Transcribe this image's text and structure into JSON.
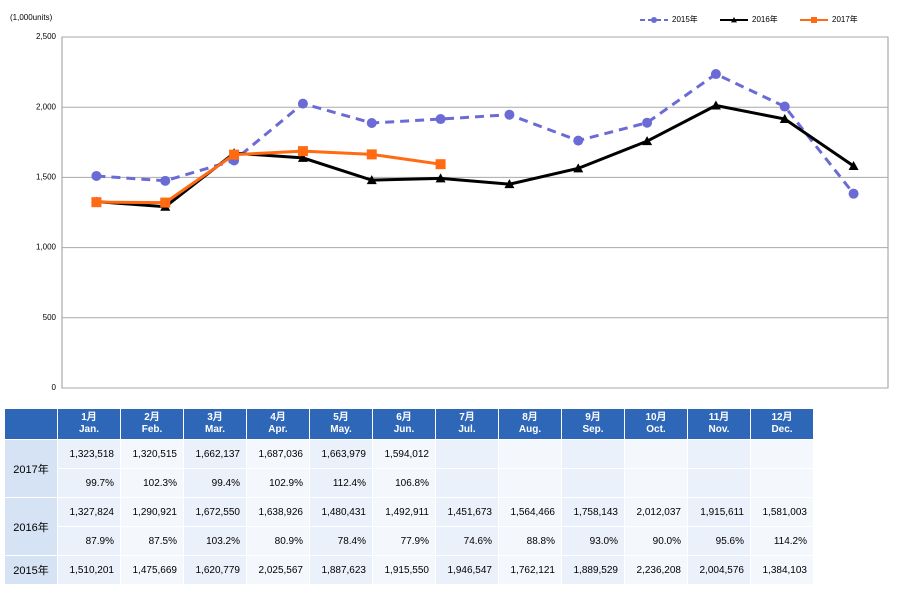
{
  "chart_data": {
    "type": "line",
    "y_axis_label": "(1,000units)",
    "categories": [
      "1月",
      "2月",
      "3月",
      "4月",
      "5月",
      "6月",
      "7月",
      "8月",
      "9月",
      "10月",
      "11月",
      "12月"
    ],
    "categories_en": [
      "Jan.",
      "Feb.",
      "Mar.",
      "Apr.",
      "May.",
      "Jun.",
      "Jul.",
      "Aug.",
      "Sep.",
      "Oct.",
      "Nov.",
      "Dec."
    ],
    "ylim": [
      0,
      2500
    ],
    "yticks": [
      0,
      500,
      {
        "value": 1000,
        "label": "1,000"
      },
      {
        "value": 1500,
        "label": "1,500"
      },
      {
        "value": 2000,
        "label": "2,000"
      },
      {
        "value": 2500,
        "label": "2,500"
      }
    ],
    "grid": true,
    "legend": "top-right",
    "series": [
      {
        "name": "2015年",
        "color": "#6b6bd6",
        "dash": true,
        "marker": "circle",
        "values": [
          1510.201,
          1475.669,
          1620.779,
          2025.567,
          1887.623,
          1915.55,
          1946.547,
          1762.121,
          1889.529,
          2236.208,
          2004.576,
          1384.103
        ],
        "value_labels": [
          "1,510,201",
          "1,475,669",
          "1,620,779",
          "2,025,567",
          "1,887,623",
          "1,915,550",
          "1,946,547",
          "1,762,121",
          "1,889,529",
          "2,236,208",
          "2,004,576",
          "1,384,103"
        ]
      },
      {
        "name": "2016年",
        "color": "#000000",
        "dash": false,
        "marker": "triangle",
        "values": [
          1327.824,
          1290.921,
          1672.55,
          1638.926,
          1480.431,
          1492.911,
          1451.673,
          1564.466,
          1758.143,
          2012.037,
          1915.611,
          1581.003
        ],
        "value_labels": [
          "1,327,824",
          "1,290,921",
          "1,672,550",
          "1,638,926",
          "1,480,431",
          "1,492,911",
          "1,451,673",
          "1,564,466",
          "1,758,143",
          "2,012,037",
          "1,915,611",
          "1,581,003"
        ],
        "ratio_labels": [
          "87.9%",
          "87.5%",
          "103.2%",
          "80.9%",
          "78.4%",
          "77.9%",
          "74.6%",
          "88.8%",
          "93.0%",
          "90.0%",
          "95.6%",
          "114.2%"
        ]
      },
      {
        "name": "2017年",
        "color": "#ff6a13",
        "dash": false,
        "marker": "square",
        "values": [
          1323.518,
          1320.515,
          1662.137,
          1687.036,
          1663.979,
          1594.012,
          null,
          null,
          null,
          null,
          null,
          null
        ],
        "value_labels": [
          "1,323,518",
          "1,320,515",
          "1,662,137",
          "1,687,036",
          "1,663,979",
          "1,594,012",
          null,
          null,
          null,
          null,
          null,
          null
        ],
        "ratio_labels": [
          "99.7%",
          "102.3%",
          "99.4%",
          "102.9%",
          "112.4%",
          "106.8%",
          null,
          null,
          null,
          null,
          null,
          null
        ]
      }
    ]
  }
}
